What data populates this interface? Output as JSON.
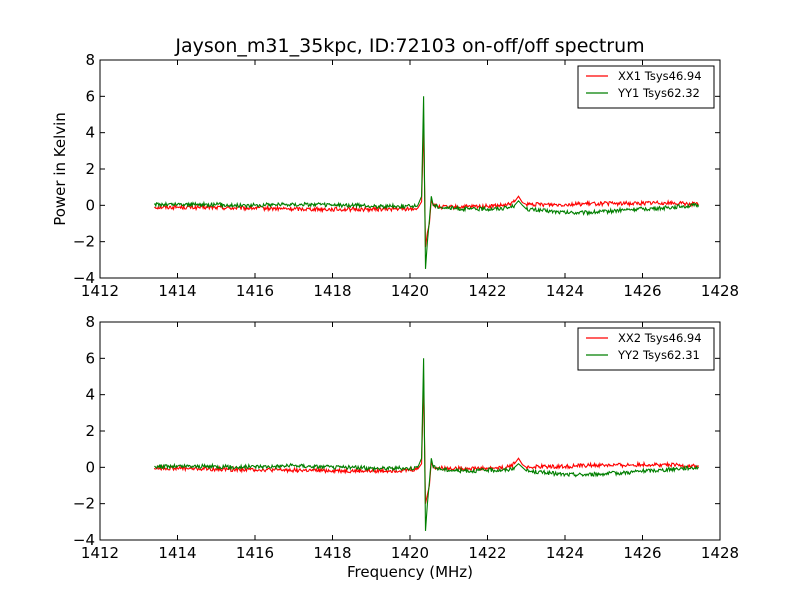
{
  "figure": {
    "title": "Jayson_m31_35kpc, ID:72103 on-off/off spectrum"
  },
  "chart_data": [
    {
      "type": "line",
      "title": "Jayson_m31_35kpc, ID:72103 on-off/off spectrum",
      "xlabel": "",
      "ylabel": "Power in Kelvin",
      "xlim": [
        1412,
        1428
      ],
      "ylim": [
        -4,
        8
      ],
      "xticks": [
        1412,
        1414,
        1416,
        1418,
        1420,
        1422,
        1424,
        1426,
        1428
      ],
      "yticks": [
        -4,
        -2,
        0,
        2,
        4,
        6,
        8
      ],
      "grid": false,
      "legend": "top-right",
      "series": [
        {
          "name": "XX1 Tsys46.94",
          "color": "#ff0000",
          "x": [
            1413.4,
            1414.0,
            1414.5,
            1415.0,
            1415.5,
            1416.0,
            1416.5,
            1417.0,
            1417.5,
            1418.0,
            1418.5,
            1419.0,
            1419.5,
            1420.0,
            1420.2,
            1420.3,
            1420.35,
            1420.4,
            1420.45,
            1420.5,
            1420.55,
            1420.6,
            1420.8,
            1421.0,
            1421.5,
            1422.0,
            1422.5,
            1422.7,
            1422.8,
            1422.9,
            1423.0,
            1423.5,
            1424.0,
            1424.5,
            1425.0,
            1425.5,
            1426.0,
            1426.5,
            1427.0,
            1427.45
          ],
          "y": [
            -0.1,
            -0.1,
            -0.12,
            -0.12,
            -0.15,
            -0.15,
            -0.18,
            -0.2,
            -0.2,
            -0.22,
            -0.22,
            -0.22,
            -0.2,
            -0.2,
            -0.15,
            0.2,
            4.5,
            -2.3,
            -1.5,
            -1.0,
            0.3,
            0.0,
            -0.1,
            -0.1,
            -0.08,
            -0.05,
            0.0,
            0.2,
            0.5,
            0.15,
            0.05,
            0.05,
            0.05,
            0.08,
            0.1,
            0.1,
            0.12,
            0.15,
            0.1,
            0.05
          ]
        },
        {
          "name": "YY1 Tsys62.32",
          "color": "#007f00",
          "x": [
            1413.4,
            1414.0,
            1414.5,
            1415.0,
            1415.5,
            1416.0,
            1416.5,
            1417.0,
            1417.5,
            1418.0,
            1418.5,
            1419.0,
            1419.5,
            1420.0,
            1420.2,
            1420.3,
            1420.35,
            1420.4,
            1420.45,
            1420.5,
            1420.55,
            1420.6,
            1420.8,
            1421.0,
            1421.5,
            1422.0,
            1422.5,
            1422.7,
            1422.8,
            1422.9,
            1423.0,
            1423.5,
            1424.0,
            1424.5,
            1425.0,
            1425.5,
            1426.0,
            1426.5,
            1427.0,
            1427.45
          ],
          "y": [
            0.05,
            0.05,
            0.05,
            0.05,
            0.0,
            0.0,
            0.05,
            0.05,
            0.05,
            0.0,
            0.0,
            -0.05,
            -0.05,
            -0.05,
            0.0,
            0.5,
            6.0,
            -3.5,
            -2.0,
            -0.8,
            0.5,
            0.0,
            -0.1,
            -0.15,
            -0.2,
            -0.2,
            -0.15,
            0.0,
            0.25,
            0.0,
            -0.2,
            -0.3,
            -0.4,
            -0.4,
            -0.35,
            -0.25,
            -0.2,
            -0.15,
            -0.05,
            0.0
          ]
        }
      ]
    },
    {
      "type": "line",
      "title": "",
      "xlabel": "Frequency (MHz)",
      "ylabel": "",
      "xlim": [
        1412,
        1428
      ],
      "ylim": [
        -4,
        8
      ],
      "xticks": [
        1412,
        1414,
        1416,
        1418,
        1420,
        1422,
        1424,
        1426,
        1428
      ],
      "yticks": [
        -4,
        -2,
        0,
        2,
        4,
        6,
        8
      ],
      "grid": false,
      "legend": "top-right",
      "series": [
        {
          "name": "XX2 Tsys46.94",
          "color": "#ff0000",
          "x": [
            1413.4,
            1414.0,
            1414.5,
            1415.0,
            1415.5,
            1416.0,
            1416.5,
            1417.0,
            1417.5,
            1418.0,
            1418.5,
            1419.0,
            1419.5,
            1420.0,
            1420.2,
            1420.3,
            1420.35,
            1420.4,
            1420.45,
            1420.5,
            1420.55,
            1420.6,
            1420.8,
            1421.0,
            1421.5,
            1422.0,
            1422.5,
            1422.7,
            1422.8,
            1422.9,
            1423.0,
            1423.5,
            1424.0,
            1424.5,
            1425.0,
            1425.5,
            1426.0,
            1426.5,
            1427.0,
            1427.45
          ],
          "y": [
            -0.05,
            -0.05,
            -0.08,
            -0.1,
            -0.12,
            -0.12,
            -0.15,
            -0.15,
            -0.18,
            -0.18,
            -0.2,
            -0.2,
            -0.18,
            -0.15,
            -0.1,
            0.2,
            4.8,
            -2.0,
            -1.5,
            -1.0,
            0.3,
            0.0,
            -0.05,
            -0.05,
            -0.05,
            -0.05,
            0.0,
            0.2,
            0.5,
            0.15,
            0.0,
            0.05,
            0.05,
            0.1,
            0.12,
            0.12,
            0.15,
            0.15,
            0.1,
            0.05
          ]
        },
        {
          "name": "YY2 Tsys62.31",
          "color": "#007f00",
          "x": [
            1413.4,
            1414.0,
            1414.5,
            1415.0,
            1415.5,
            1416.0,
            1416.5,
            1417.0,
            1417.5,
            1418.0,
            1418.5,
            1419.0,
            1419.5,
            1420.0,
            1420.2,
            1420.3,
            1420.35,
            1420.4,
            1420.45,
            1420.5,
            1420.55,
            1420.6,
            1420.8,
            1421.0,
            1421.5,
            1422.0,
            1422.5,
            1422.7,
            1422.8,
            1422.9,
            1423.0,
            1423.5,
            1424.0,
            1424.5,
            1425.0,
            1425.5,
            1426.0,
            1426.5,
            1427.0,
            1427.45
          ],
          "y": [
            0.05,
            0.05,
            0.05,
            0.05,
            0.0,
            0.05,
            0.05,
            0.1,
            0.05,
            0.0,
            0.0,
            -0.05,
            -0.05,
            -0.05,
            0.0,
            0.5,
            6.0,
            -3.5,
            -2.0,
            -0.8,
            0.5,
            0.0,
            -0.1,
            -0.15,
            -0.2,
            -0.15,
            -0.15,
            0.0,
            0.2,
            0.0,
            -0.2,
            -0.3,
            -0.4,
            -0.4,
            -0.35,
            -0.3,
            -0.2,
            -0.15,
            -0.05,
            0.0
          ]
        }
      ]
    }
  ]
}
